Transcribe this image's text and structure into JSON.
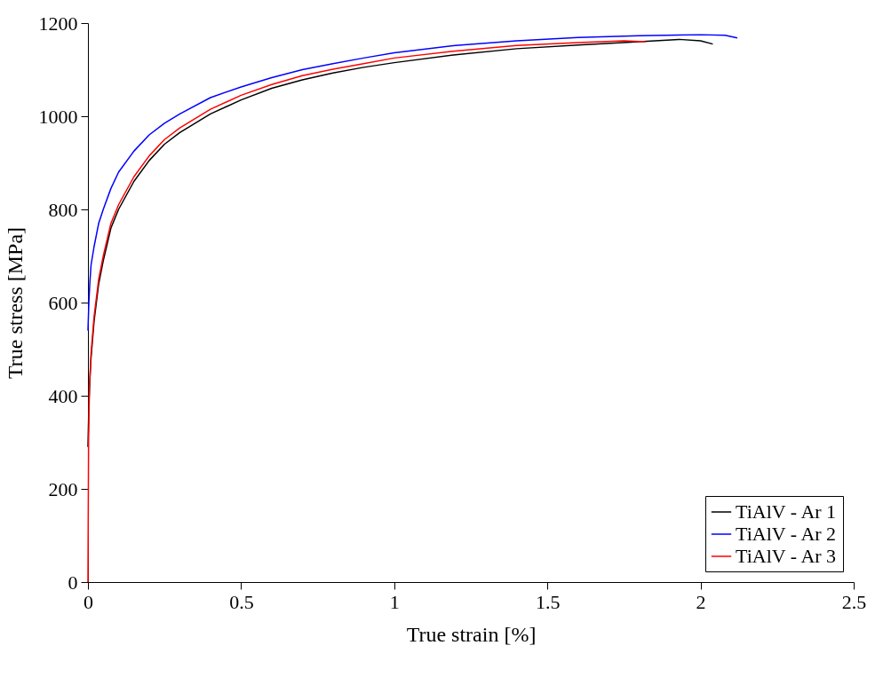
{
  "chart_data": {
    "type": "line",
    "xlabel": "True strain [%]",
    "ylabel": "True stress [MPa]",
    "xlim": [
      0,
      2.5
    ],
    "ylim": [
      0,
      1200
    ],
    "xticks": [
      0,
      0.5,
      1,
      1.5,
      2,
      2.5
    ],
    "yticks": [
      0,
      200,
      400,
      600,
      800,
      1000,
      1200
    ],
    "grid": false,
    "legend": "bottom right",
    "line_style": "solid",
    "marker": "none",
    "series": [
      {
        "name": "TiAlV - Ar 1",
        "color": "#000000",
        "x": [
          0,
          0.003,
          0.006,
          0.01,
          0.02,
          0.035,
          0.05,
          0.075,
          0.1,
          0.15,
          0.2,
          0.25,
          0.3,
          0.4,
          0.5,
          0.6,
          0.7,
          0.8,
          0.9,
          1.0,
          1.2,
          1.4,
          1.6,
          1.8,
          1.93,
          2.0,
          2.04
        ],
        "values": [
          290,
          380,
          430,
          480,
          560,
          640,
          690,
          760,
          800,
          860,
          905,
          940,
          965,
          1005,
          1035,
          1060,
          1078,
          1093,
          1105,
          1115,
          1132,
          1145,
          1153,
          1160,
          1165,
          1162,
          1155
        ]
      },
      {
        "name": "TiAlV - Ar 2",
        "color": "#0000ff",
        "x": [
          0,
          0.003,
          0.006,
          0.01,
          0.02,
          0.035,
          0.05,
          0.075,
          0.1,
          0.15,
          0.2,
          0.25,
          0.3,
          0.4,
          0.5,
          0.6,
          0.7,
          0.8,
          0.9,
          1.0,
          1.2,
          1.4,
          1.6,
          1.8,
          2.0,
          2.08,
          2.12
        ],
        "values": [
          540,
          600,
          640,
          680,
          720,
          770,
          800,
          845,
          880,
          925,
          960,
          985,
          1005,
          1040,
          1063,
          1083,
          1100,
          1113,
          1125,
          1136,
          1152,
          1162,
          1169,
          1173,
          1175,
          1174,
          1168
        ]
      },
      {
        "name": "TiAlV - Ar 3",
        "color": "#ff0000",
        "x": [
          0,
          0.002,
          0.005,
          0.01,
          0.02,
          0.035,
          0.05,
          0.075,
          0.1,
          0.15,
          0.2,
          0.25,
          0.3,
          0.4,
          0.5,
          0.6,
          0.7,
          0.8,
          0.9,
          1.0,
          1.2,
          1.4,
          1.6,
          1.75,
          1.82
        ],
        "values": [
          0,
          300,
          420,
          490,
          570,
          650,
          700,
          770,
          810,
          870,
          915,
          950,
          975,
          1015,
          1045,
          1068,
          1087,
          1101,
          1113,
          1125,
          1140,
          1152,
          1158,
          1162,
          1160
        ]
      }
    ]
  }
}
